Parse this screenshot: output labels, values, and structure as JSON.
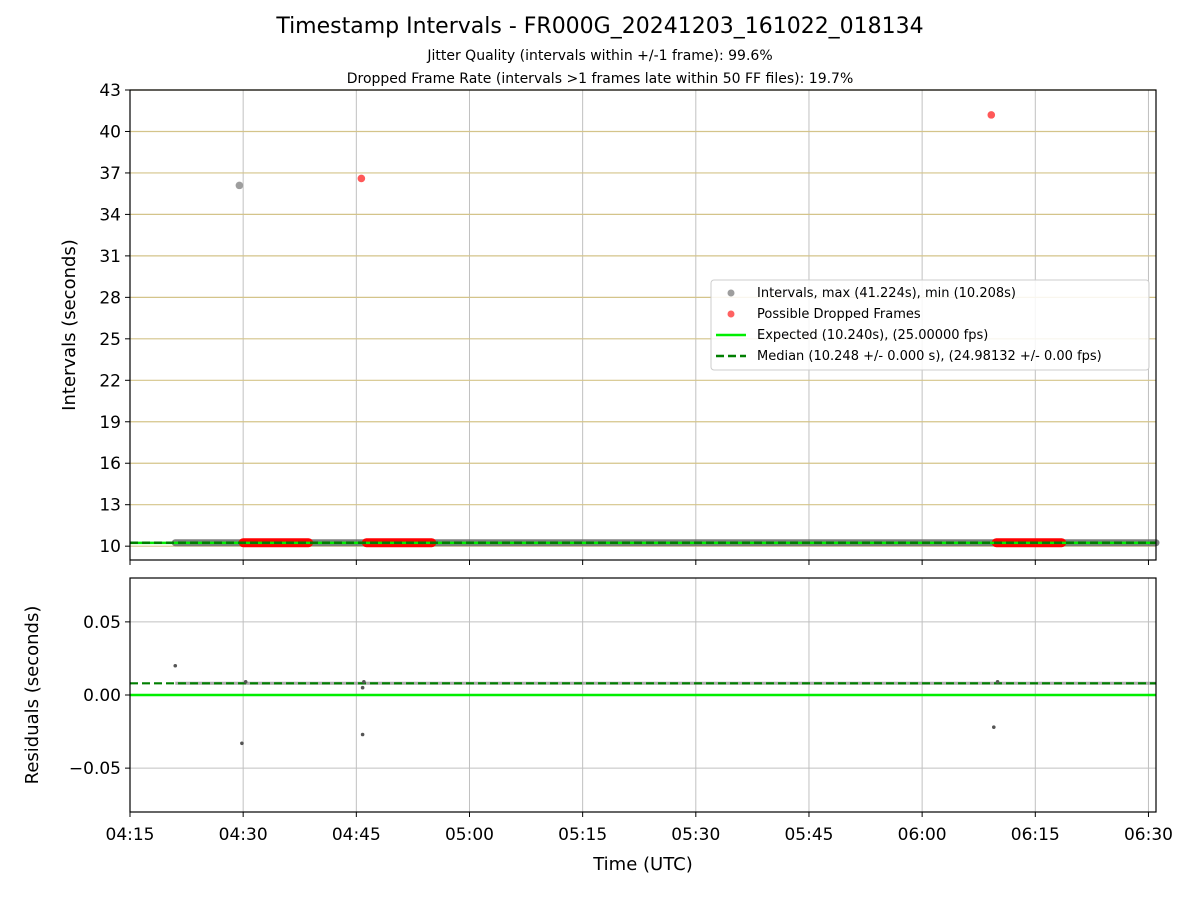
{
  "header": {
    "title": "Timestamp Intervals - FR000G_20241203_161022_018134",
    "subtitle1": "Jitter Quality (intervals within +/-1 frame): 99.6%",
    "subtitle2": "Dropped Frame Rate (intervals >1 frames late within 50 FF files): 19.7%"
  },
  "chart_data": [
    {
      "type": "scatter",
      "ylabel": "Intervals (seconds)",
      "xlabel": "",
      "ylim": [
        9,
        43
      ],
      "yticks": [
        10,
        13,
        16,
        19,
        22,
        25,
        28,
        31,
        34,
        37,
        40,
        43
      ],
      "xlim": [
        "04:15",
        "06:31"
      ],
      "grid": true,
      "legend_position": "center-right",
      "colors": {
        "intervals": "#9e9e9e",
        "dropped": "#ff3b3b",
        "dropped_band": "#ff0000",
        "interval_band": "#616161",
        "expected": "#00ee00",
        "median": "#007f00",
        "h_grid": "#d4c48a",
        "v_grid": "#c0c0c0"
      },
      "series": [
        {
          "name": "Intervals, max (41.224s), min (10.208s)",
          "marker": "gray-circle",
          "points": [
            {
              "x": "04:29:30",
              "y": 36.1
            }
          ],
          "band": {
            "from": "04:21:00",
            "to": "06:31:00",
            "y": 10.248
          }
        },
        {
          "name": "Possible Dropped Frames",
          "marker": "red-circle",
          "points": [
            {
              "x": "04:45:40",
              "y": 36.6
            },
            {
              "x": "06:09:10",
              "y": 41.2
            }
          ],
          "segments": [
            {
              "from": "04:30:00",
              "to": "04:38:40",
              "y": 10.25
            },
            {
              "from": "04:46:20",
              "to": "04:55:00",
              "y": 10.25
            },
            {
              "from": "06:09:50",
              "to": "06:18:30",
              "y": 10.25
            }
          ]
        },
        {
          "name": "Expected (10.240s), (25.00000 fps)",
          "line": "solid",
          "y": 10.24
        },
        {
          "name": "Median (10.248 +/- 0.000 s), (24.98132 +/- 0.00 fps)",
          "line": "dashed",
          "y": 10.248
        }
      ]
    },
    {
      "type": "scatter",
      "ylabel": "Residuals (seconds)",
      "xlabel": "Time (UTC)",
      "ylim": [
        -0.08,
        0.08
      ],
      "yticks": [
        0.05,
        0.0,
        -0.05
      ],
      "ytick_labels": [
        "0.05",
        "0.00",
        "−0.05"
      ],
      "xticks": [
        "04:15",
        "04:30",
        "04:45",
        "05:00",
        "05:15",
        "05:30",
        "05:45",
        "06:00",
        "06:15",
        "06:30"
      ],
      "xlim": [
        "04:15",
        "06:31"
      ],
      "grid": true,
      "series": [
        {
          "name": "Residuals",
          "points": [
            {
              "x": "04:21:00",
              "y": 0.02
            },
            {
              "x": "04:29:50",
              "y": -0.033
            },
            {
              "x": "04:45:50",
              "y": -0.027
            },
            {
              "x": "04:45:50",
              "y": 0.005
            },
            {
              "x": "06:09:30",
              "y": -0.022
            },
            {
              "x": "04:30:20",
              "y": 0.009
            },
            {
              "x": "04:46:00",
              "y": 0.009
            },
            {
              "x": "06:10:00",
              "y": 0.009
            }
          ],
          "band": {
            "from": "04:21:00",
            "to": "06:31:00",
            "y": 0.008
          }
        },
        {
          "name": "Expected",
          "line": "solid",
          "y": 0.0
        },
        {
          "name": "Median",
          "line": "dashed",
          "y": 0.008
        }
      ]
    }
  ]
}
